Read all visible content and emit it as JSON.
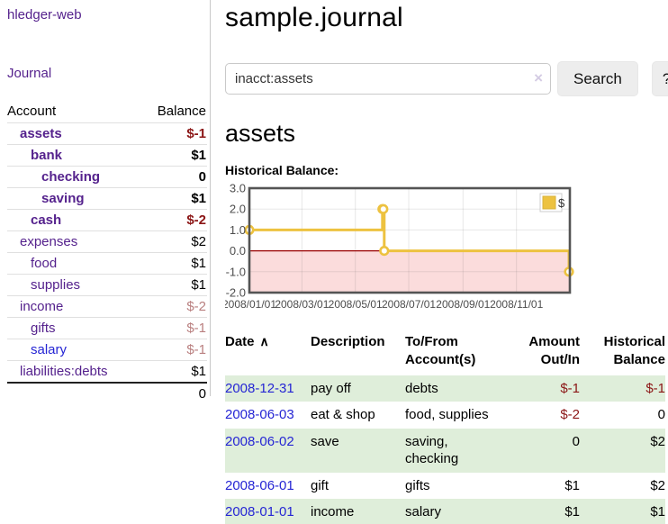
{
  "sidebar": {
    "brand": "hledger-web",
    "journal_link": "Journal",
    "table": {
      "col_account": "Account",
      "col_balance": "Balance"
    },
    "accounts": [
      {
        "label": "assets",
        "level": 1,
        "bold": true,
        "label_color": "purple",
        "balance": "$-1",
        "balance_class": "negStrong"
      },
      {
        "label": "bank",
        "level": 2,
        "bold": true,
        "label_color": "purple",
        "balance": "$1",
        "balance_class": ""
      },
      {
        "label": "checking",
        "level": 3,
        "bold": true,
        "label_color": "purple",
        "balance": "0",
        "balance_class": ""
      },
      {
        "label": "saving",
        "level": 3,
        "bold": true,
        "label_color": "purple",
        "balance": "$1",
        "balance_class": ""
      },
      {
        "label": "cash",
        "level": 2,
        "bold": true,
        "label_color": "purple",
        "balance": "$-2",
        "balance_class": "negStrong"
      },
      {
        "label": "expenses",
        "level": 1,
        "bold": false,
        "label_color": "purple",
        "balance": "$2",
        "balance_class": ""
      },
      {
        "label": "food",
        "level": 2,
        "bold": false,
        "label_color": "purple",
        "balance": "$1",
        "balance_class": ""
      },
      {
        "label": "supplies",
        "level": 2,
        "bold": false,
        "label_color": "purple",
        "balance": "$1",
        "balance_class": ""
      },
      {
        "label": "income",
        "level": 1,
        "bold": false,
        "label_color": "purple",
        "balance": "$-2",
        "balance_class": "negSoft"
      },
      {
        "label": "gifts",
        "level": 2,
        "bold": false,
        "label_color": "purple",
        "balance": "$-1",
        "balance_class": "negSoft"
      },
      {
        "label": "salary",
        "level": 2,
        "bold": false,
        "label_color": "blue",
        "balance": "$-1",
        "balance_class": "negSoft"
      },
      {
        "label": "liabilities:debts",
        "level": 1,
        "bold": false,
        "label_color": "purple",
        "balance": "$1",
        "balance_class": ""
      }
    ],
    "total": "0"
  },
  "header": {
    "title": "sample.journal"
  },
  "search": {
    "value": "inacct:assets",
    "clear_icon": "×",
    "search_button": "Search",
    "help_button": "?"
  },
  "account_heading": "assets",
  "chart_label": "Historical Balance:",
  "chart_data": {
    "type": "line",
    "title": "Historical Balance",
    "step": true,
    "series": [
      {
        "name": "$",
        "color": "#edc240",
        "points": [
          [
            "2008-01-01",
            1
          ],
          [
            "2008-06-01",
            2
          ],
          [
            "2008-06-02",
            2
          ],
          [
            "2008-06-03",
            0
          ],
          [
            "2008-12-31",
            -1
          ]
        ]
      }
    ],
    "x_range": [
      "2008-01-01",
      "2009-01-01"
    ],
    "y_range": [
      -2,
      3
    ],
    "y_ticks": [
      {
        "v": 3,
        "label": "3.0"
      },
      {
        "v": 2,
        "label": "2.0"
      },
      {
        "v": 1,
        "label": "1.0"
      },
      {
        "v": 0,
        "label": "0.0"
      },
      {
        "v": -1,
        "label": "-1.0"
      },
      {
        "v": -2,
        "label": "-2.0"
      }
    ],
    "x_ticks": [
      {
        "date": "2008-01-01",
        "label": "2008/01/01"
      },
      {
        "date": "2008-03-01",
        "label": "2008/03/01"
      },
      {
        "date": "2008-05-01",
        "label": "2008/05/01"
      },
      {
        "date": "2008-07-01",
        "label": "2008/07/01"
      },
      {
        "date": "2008-09-01",
        "label": "2008/09/01"
      },
      {
        "date": "2008-11-01",
        "label": "2008/11/01"
      }
    ],
    "legend": {
      "label": "$",
      "position": "top-right"
    },
    "grid": true,
    "colors": {
      "frame": "#545454",
      "grid": "#54545422",
      "axis_text": "#4d4d4d",
      "negative_region": "#fbdcdc",
      "zero_line": "#990000",
      "marker_fill": "#ffffff",
      "legend_border": "#cccccc"
    }
  },
  "txn_table": {
    "headers": {
      "date": "Date",
      "sort_indicator": "∧",
      "description": "Description",
      "accounts": "To/From\nAccount(s)",
      "amount": "Amount\nOut/In",
      "balance": "Historical\nBalance"
    },
    "rows": [
      {
        "date": "2008-12-31",
        "description": "pay off",
        "accounts": "debts",
        "amount": "$-1",
        "amount_class": "negStrong",
        "balance": "$-1",
        "balance_class": "negStrong",
        "stripe": true
      },
      {
        "date": "2008-06-03",
        "description": "eat & shop",
        "accounts": "food, supplies",
        "amount": "$-2",
        "amount_class": "negStrong",
        "balance": "0",
        "balance_class": "",
        "stripe": false
      },
      {
        "date": "2008-06-02",
        "description": "save",
        "accounts": "saving,\nchecking",
        "amount": "0",
        "amount_class": "",
        "balance": "$2",
        "balance_class": "",
        "stripe": true
      },
      {
        "date": "2008-06-01",
        "description": "gift",
        "accounts": "gifts",
        "amount": "$1",
        "amount_class": "",
        "balance": "$2",
        "balance_class": "",
        "stripe": false
      },
      {
        "date": "2008-01-01",
        "description": "income",
        "accounts": "salary",
        "amount": "$1",
        "amount_class": "",
        "balance": "$1",
        "balance_class": "",
        "stripe": true
      }
    ]
  }
}
